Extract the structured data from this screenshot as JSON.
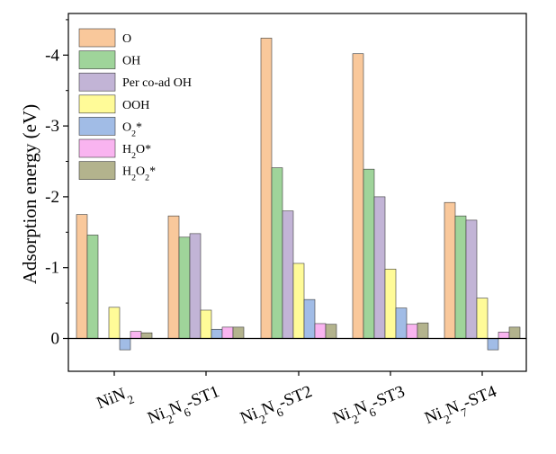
{
  "chart_data": {
    "type": "bar",
    "ylabel": "Adsorption energy (eV)",
    "xlabel": "",
    "y_axis_inverted": true,
    "ylim": [
      0.5,
      -4.5
    ],
    "yticks": [
      0,
      -1,
      -2,
      -3,
      -4
    ],
    "ytick_labels": [
      "0",
      "-1",
      "-2",
      "-3",
      "-4"
    ],
    "grid": false,
    "legend_position": "top-left",
    "categories": [
      {
        "base": "NiN",
        "sub": "2",
        "rest": ""
      },
      {
        "base": "Ni",
        "sub": "2",
        "mid": "N",
        "sub2": "6",
        "rest": "-ST1"
      },
      {
        "base": "Ni",
        "sub": "2",
        "mid": "N",
        "sub2": "6",
        "rest": "-ST2"
      },
      {
        "base": "Ni",
        "sub": "2",
        "mid": "N",
        "sub2": "6",
        "rest": "-ST3"
      },
      {
        "base": "Ni",
        "sub": "2",
        "mid": "N",
        "sub2": "7",
        "rest": "-ST4"
      }
    ],
    "category_names": [
      "NiN2",
      "Ni2N6-ST1",
      "Ni2N6-ST2",
      "Ni2N6-ST3",
      "Ni2N7-ST4"
    ],
    "series": [
      {
        "name": "O",
        "legend": {
          "base": "O"
        },
        "color": "#f9c89b",
        "values": [
          -1.75,
          -1.73,
          -4.24,
          -4.02,
          -1.92
        ]
      },
      {
        "name": "OH",
        "legend": {
          "base": "OH"
        },
        "color": "#9fd49a",
        "values": [
          -1.46,
          -1.43,
          -2.41,
          -2.39,
          -1.73
        ]
      },
      {
        "name": "Per co-ad OH",
        "legend": {
          "base": "Per co-ad OH"
        },
        "color": "#c2b4d6",
        "values": [
          null,
          -1.48,
          -1.8,
          -2.0,
          -1.67
        ]
      },
      {
        "name": "OOH",
        "legend": {
          "base": "OOH"
        },
        "color": "#fffb98",
        "values": [
          -0.44,
          -0.4,
          -1.06,
          -0.98,
          -0.57
        ]
      },
      {
        "name": "O2*",
        "legend": {
          "base": "O",
          "sub": "2",
          "rest": "*"
        },
        "color": "#a1bce6",
        "values": [
          0.16,
          -0.13,
          -0.55,
          -0.43,
          0.16
        ]
      },
      {
        "name": "H2O*",
        "legend": {
          "base": "H",
          "sub": "2",
          "rest": "O*"
        },
        "color": "#f9b4f0",
        "values": [
          -0.1,
          -0.16,
          -0.21,
          -0.2,
          -0.09
        ]
      },
      {
        "name": "H2O2*",
        "legend": {
          "base": "H",
          "sub": "2",
          "rest": "O",
          "sub2": "2",
          "rest2": "*"
        },
        "color": "#b3b38d",
        "values": [
          -0.08,
          -0.16,
          -0.2,
          -0.22,
          -0.16
        ]
      }
    ]
  }
}
